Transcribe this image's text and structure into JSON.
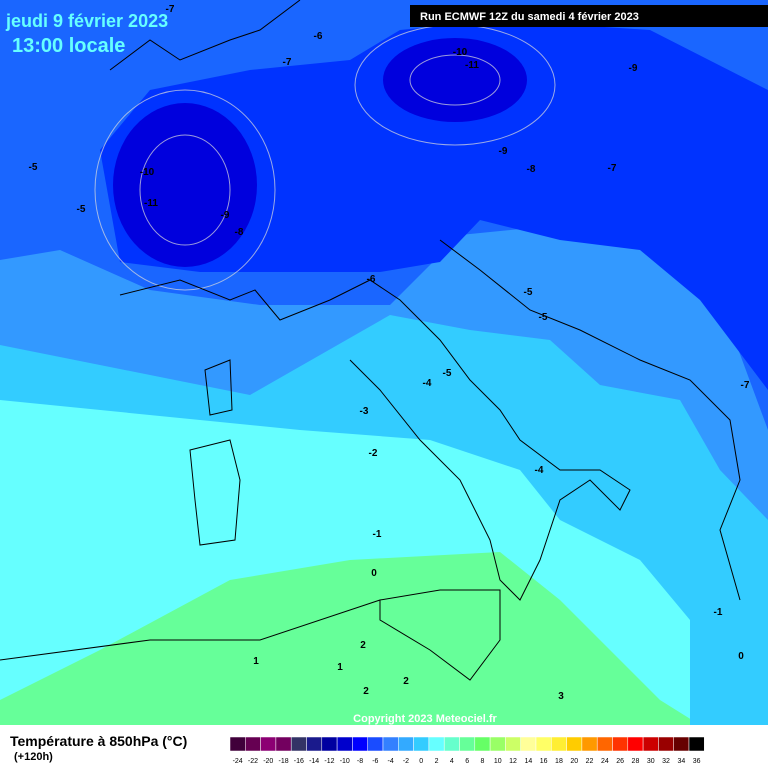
{
  "header": {
    "date": "jeudi 9 février 2023",
    "time": "13:00 locale",
    "run": "Run ECMWF 12Z du samedi 4 février 2023"
  },
  "map": {
    "copyright": "Copyright 2023 Meteociel.fr",
    "contour_labels": [
      -7,
      -6,
      -7,
      -10,
      -11,
      -9,
      -5,
      -5,
      -10,
      -11,
      -9,
      -8,
      -9,
      -8,
      -7,
      -6,
      -5,
      -5,
      -4,
      -5,
      -3,
      -2,
      -4,
      -1,
      0,
      -7,
      -1,
      0,
      2,
      1,
      1,
      2,
      2,
      3
    ]
  },
  "legend": {
    "title": "Température à 850hPa (°C)",
    "lead": "(+120h)",
    "ticks": [
      -24,
      -22,
      -20,
      -18,
      -16,
      -14,
      -12,
      -10,
      -8,
      -6,
      -4,
      -2,
      0,
      2,
      4,
      6,
      8,
      10,
      12,
      14,
      16,
      18,
      20,
      22,
      24,
      26,
      28,
      30,
      32,
      34,
      36
    ],
    "colors": [
      "#40003a",
      "#660052",
      "#8c0073",
      "#73005f",
      "#333366",
      "#1a1a8c",
      "#0000a0",
      "#0000cc",
      "#0000ff",
      "#1a4cff",
      "#3380ff",
      "#33aaff",
      "#33ccff",
      "#66ffff",
      "#66ffcc",
      "#66ff99",
      "#66ff66",
      "#99ff66",
      "#ccff66",
      "#ffff99",
      "#ffff66",
      "#ffee33",
      "#ffcc00",
      "#ff9900",
      "#ff6600",
      "#ff3300",
      "#ff0000",
      "#cc0000",
      "#990000",
      "#660000",
      "#000000"
    ]
  }
}
